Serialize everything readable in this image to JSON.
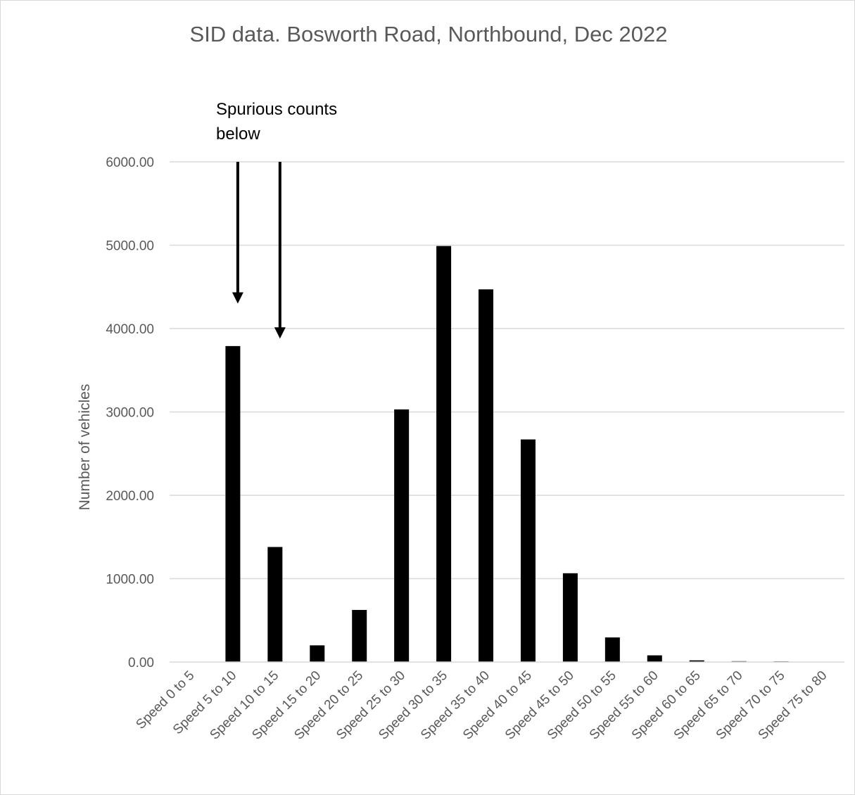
{
  "chart_data": {
    "type": "bar",
    "title": "SID data.  Bosworth Road, Northbound, Dec 2022",
    "xlabel": "",
    "ylabel": "Number of vehicles",
    "categories": [
      "Speed 0 to 5",
      "Speed 5 to 10",
      "Speed 10 to 15",
      "Speed 15 to 20",
      "Speed 20 to 25",
      "Speed 25 to 30",
      "Speed 30 to 35",
      "Speed 35 to 40",
      "Speed 40 to 45",
      "Speed 45 to 50",
      "Speed 50 to 55",
      "Speed 55 to 60",
      "Speed 60 to 65",
      "Speed 65 to 70",
      "Speed 70 to 75",
      "Speed 75 to 80"
    ],
    "values": [
      0,
      3790,
      1380,
      200,
      625,
      3030,
      4990,
      4470,
      2670,
      1065,
      295,
      80,
      20,
      10,
      5,
      0
    ],
    "ylim": [
      0,
      6000
    ],
    "yticks": [
      "0.00",
      "1000.00",
      "2000.00",
      "3000.00",
      "4000.00",
      "5000.00",
      "6000.00"
    ],
    "grid": true,
    "legend": "none",
    "bar_color": "#000000",
    "annotation": {
      "lines": [
        "Spurious counts",
        "below"
      ],
      "arrows": [
        {
          "category": "Speed 5 to 10",
          "from": 6000,
          "to": 4300
        },
        {
          "category": "Speed 10 to 15",
          "from": 6000,
          "to": 3880
        }
      ]
    }
  }
}
